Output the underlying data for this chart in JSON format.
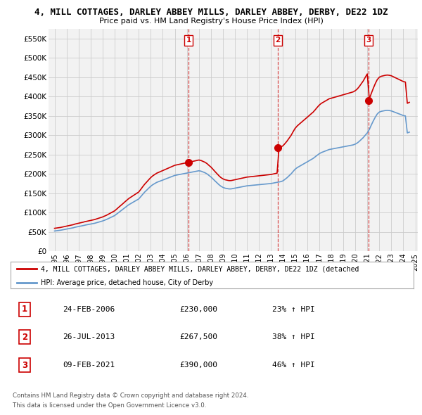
{
  "title": "4, MILL COTTAGES, DARLEY ABBEY MILLS, DARLEY ABBEY, DERBY, DE22 1DZ",
  "subtitle": "Price paid vs. HM Land Registry's House Price Index (HPI)",
  "legend_line1": "4, MILL COTTAGES, DARLEY ABBEY MILLS, DARLEY ABBEY, DERBY, DE22 1DZ (detached",
  "legend_line2": "HPI: Average price, detached house, City of Derby",
  "footer1": "Contains HM Land Registry data © Crown copyright and database right 2024.",
  "footer2": "This data is licensed under the Open Government Licence v3.0.",
  "sale_color": "#cc0000",
  "hpi_color": "#6699cc",
  "background_color": "#ffffff",
  "grid_color": "#cccccc",
  "ylim": [
    0,
    575000
  ],
  "yticks": [
    0,
    50000,
    100000,
    150000,
    200000,
    250000,
    300000,
    350000,
    400000,
    450000,
    500000,
    550000
  ],
  "ytick_labels": [
    "£0",
    "£50K",
    "£100K",
    "£150K",
    "£200K",
    "£250K",
    "£300K",
    "£350K",
    "£400K",
    "£450K",
    "£500K",
    "£550K"
  ],
  "sale_dates": [
    2006.15,
    2013.57,
    2021.11
  ],
  "sale_prices": [
    230000,
    267500,
    390000
  ],
  "sale_labels": [
    "1",
    "2",
    "3"
  ],
  "vline_dates": [
    2006.15,
    2013.57,
    2021.11
  ],
  "table_data": [
    [
      "1",
      "24-FEB-2006",
      "£230,000",
      "23% ↑ HPI"
    ],
    [
      "2",
      "26-JUL-2013",
      "£267,500",
      "38% ↑ HPI"
    ],
    [
      "3",
      "09-FEB-2021",
      "£390,000",
      "46% ↑ HPI"
    ]
  ],
  "hpi_x": [
    1995.0,
    1995.08,
    1995.17,
    1995.25,
    1995.33,
    1995.42,
    1995.5,
    1995.58,
    1995.67,
    1995.75,
    1995.83,
    1995.92,
    1996.0,
    1996.08,
    1996.17,
    1996.25,
    1996.33,
    1996.42,
    1996.5,
    1996.58,
    1996.67,
    1996.75,
    1996.83,
    1996.92,
    1997.0,
    1997.08,
    1997.17,
    1997.25,
    1997.33,
    1997.42,
    1997.5,
    1997.58,
    1997.67,
    1997.75,
    1997.83,
    1997.92,
    1998.0,
    1998.17,
    1998.33,
    1998.5,
    1998.67,
    1998.83,
    1999.0,
    1999.17,
    1999.33,
    1999.5,
    1999.67,
    1999.83,
    2000.0,
    2000.17,
    2000.33,
    2000.5,
    2000.67,
    2000.83,
    2001.0,
    2001.17,
    2001.33,
    2001.5,
    2001.67,
    2001.83,
    2002.0,
    2002.17,
    2002.33,
    2002.5,
    2002.67,
    2002.83,
    2003.0,
    2003.17,
    2003.33,
    2003.5,
    2003.67,
    2003.83,
    2004.0,
    2004.17,
    2004.33,
    2004.5,
    2004.67,
    2004.83,
    2005.0,
    2005.17,
    2005.33,
    2005.5,
    2005.67,
    2005.83,
    2006.0,
    2006.17,
    2006.33,
    2006.5,
    2006.67,
    2006.83,
    2007.0,
    2007.17,
    2007.33,
    2007.5,
    2007.67,
    2007.83,
    2008.0,
    2008.17,
    2008.33,
    2008.5,
    2008.67,
    2008.83,
    2009.0,
    2009.17,
    2009.33,
    2009.5,
    2009.67,
    2009.83,
    2010.0,
    2010.17,
    2010.33,
    2010.5,
    2010.67,
    2010.83,
    2011.0,
    2011.17,
    2011.33,
    2011.5,
    2011.67,
    2011.83,
    2012.0,
    2012.17,
    2012.33,
    2012.5,
    2012.67,
    2012.83,
    2013.0,
    2013.17,
    2013.33,
    2013.5,
    2013.67,
    2013.83,
    2014.0,
    2014.17,
    2014.33,
    2014.5,
    2014.67,
    2014.83,
    2015.0,
    2015.17,
    2015.33,
    2015.5,
    2015.67,
    2015.83,
    2016.0,
    2016.17,
    2016.33,
    2016.5,
    2016.67,
    2016.83,
    2017.0,
    2017.17,
    2017.33,
    2017.5,
    2017.67,
    2017.83,
    2018.0,
    2018.17,
    2018.33,
    2018.5,
    2018.67,
    2018.83,
    2019.0,
    2019.17,
    2019.33,
    2019.5,
    2019.67,
    2019.83,
    2020.0,
    2020.17,
    2020.33,
    2020.5,
    2020.67,
    2020.83,
    2021.0,
    2021.17,
    2021.33,
    2021.5,
    2021.67,
    2021.83,
    2022.0,
    2022.17,
    2022.33,
    2022.5,
    2022.67,
    2022.83,
    2023.0,
    2023.17,
    2023.33,
    2023.5,
    2023.67,
    2023.83,
    2024.0,
    2024.17,
    2024.33,
    2024.5
  ],
  "hpi_y": [
    52000,
    52300,
    52700,
    53000,
    53300,
    53700,
    54000,
    54500,
    55000,
    55500,
    56000,
    56500,
    57000,
    57500,
    58000,
    58500,
    59000,
    59500,
    60000,
    60500,
    61500,
    62000,
    62500,
    63000,
    63500,
    64000,
    64500,
    65000,
    65700,
    66300,
    67000,
    67500,
    68000,
    68500,
    69000,
    69500,
    70000,
    71000,
    72000,
    73500,
    75000,
    76500,
    78000,
    80000,
    82000,
    84500,
    87000,
    89500,
    92000,
    96000,
    100000,
    104000,
    108000,
    112000,
    116000,
    120000,
    123000,
    126000,
    129000,
    132000,
    135000,
    141000,
    147000,
    153000,
    158000,
    163000,
    168000,
    172000,
    175000,
    178000,
    180000,
    182000,
    184000,
    186000,
    188000,
    190000,
    192000,
    194000,
    196000,
    197000,
    198000,
    199000,
    200000,
    201000,
    202000,
    203000,
    204000,
    205000,
    206000,
    207000,
    208000,
    207000,
    205000,
    203000,
    200000,
    196000,
    192000,
    187000,
    182000,
    177000,
    172000,
    168000,
    165000,
    163000,
    162000,
    161000,
    161000,
    162000,
    163000,
    164000,
    165000,
    166000,
    167000,
    168000,
    169000,
    169500,
    170000,
    170500,
    171000,
    171500,
    172000,
    172500,
    173000,
    173500,
    174000,
    174500,
    175000,
    176000,
    177000,
    178000,
    179000,
    180000,
    182000,
    186000,
    190000,
    195000,
    200000,
    206000,
    212000,
    216000,
    219000,
    222000,
    225000,
    228000,
    231000,
    234000,
    237000,
    240000,
    244000,
    248000,
    252000,
    255000,
    257000,
    259000,
    261000,
    263000,
    264000,
    265000,
    266000,
    267000,
    268000,
    269000,
    270000,
    271000,
    272000,
    273000,
    274000,
    275000,
    277000,
    280000,
    284000,
    289000,
    294000,
    300000,
    306000,
    315000,
    326000,
    337000,
    347000,
    355000,
    360000,
    362000,
    363000,
    364000,
    364500,
    364000,
    363000,
    361000,
    359000,
    357000,
    355000,
    353000,
    351000,
    350000,
    306000,
    308000
  ],
  "xlim_left": 1994.5,
  "xlim_right": 2025.2,
  "xtick_years": [
    1995,
    1996,
    1997,
    1998,
    1999,
    2000,
    2001,
    2002,
    2003,
    2004,
    2005,
    2006,
    2007,
    2008,
    2009,
    2010,
    2011,
    2012,
    2013,
    2014,
    2015,
    2016,
    2017,
    2018,
    2019,
    2020,
    2021,
    2022,
    2023,
    2024,
    2025
  ]
}
